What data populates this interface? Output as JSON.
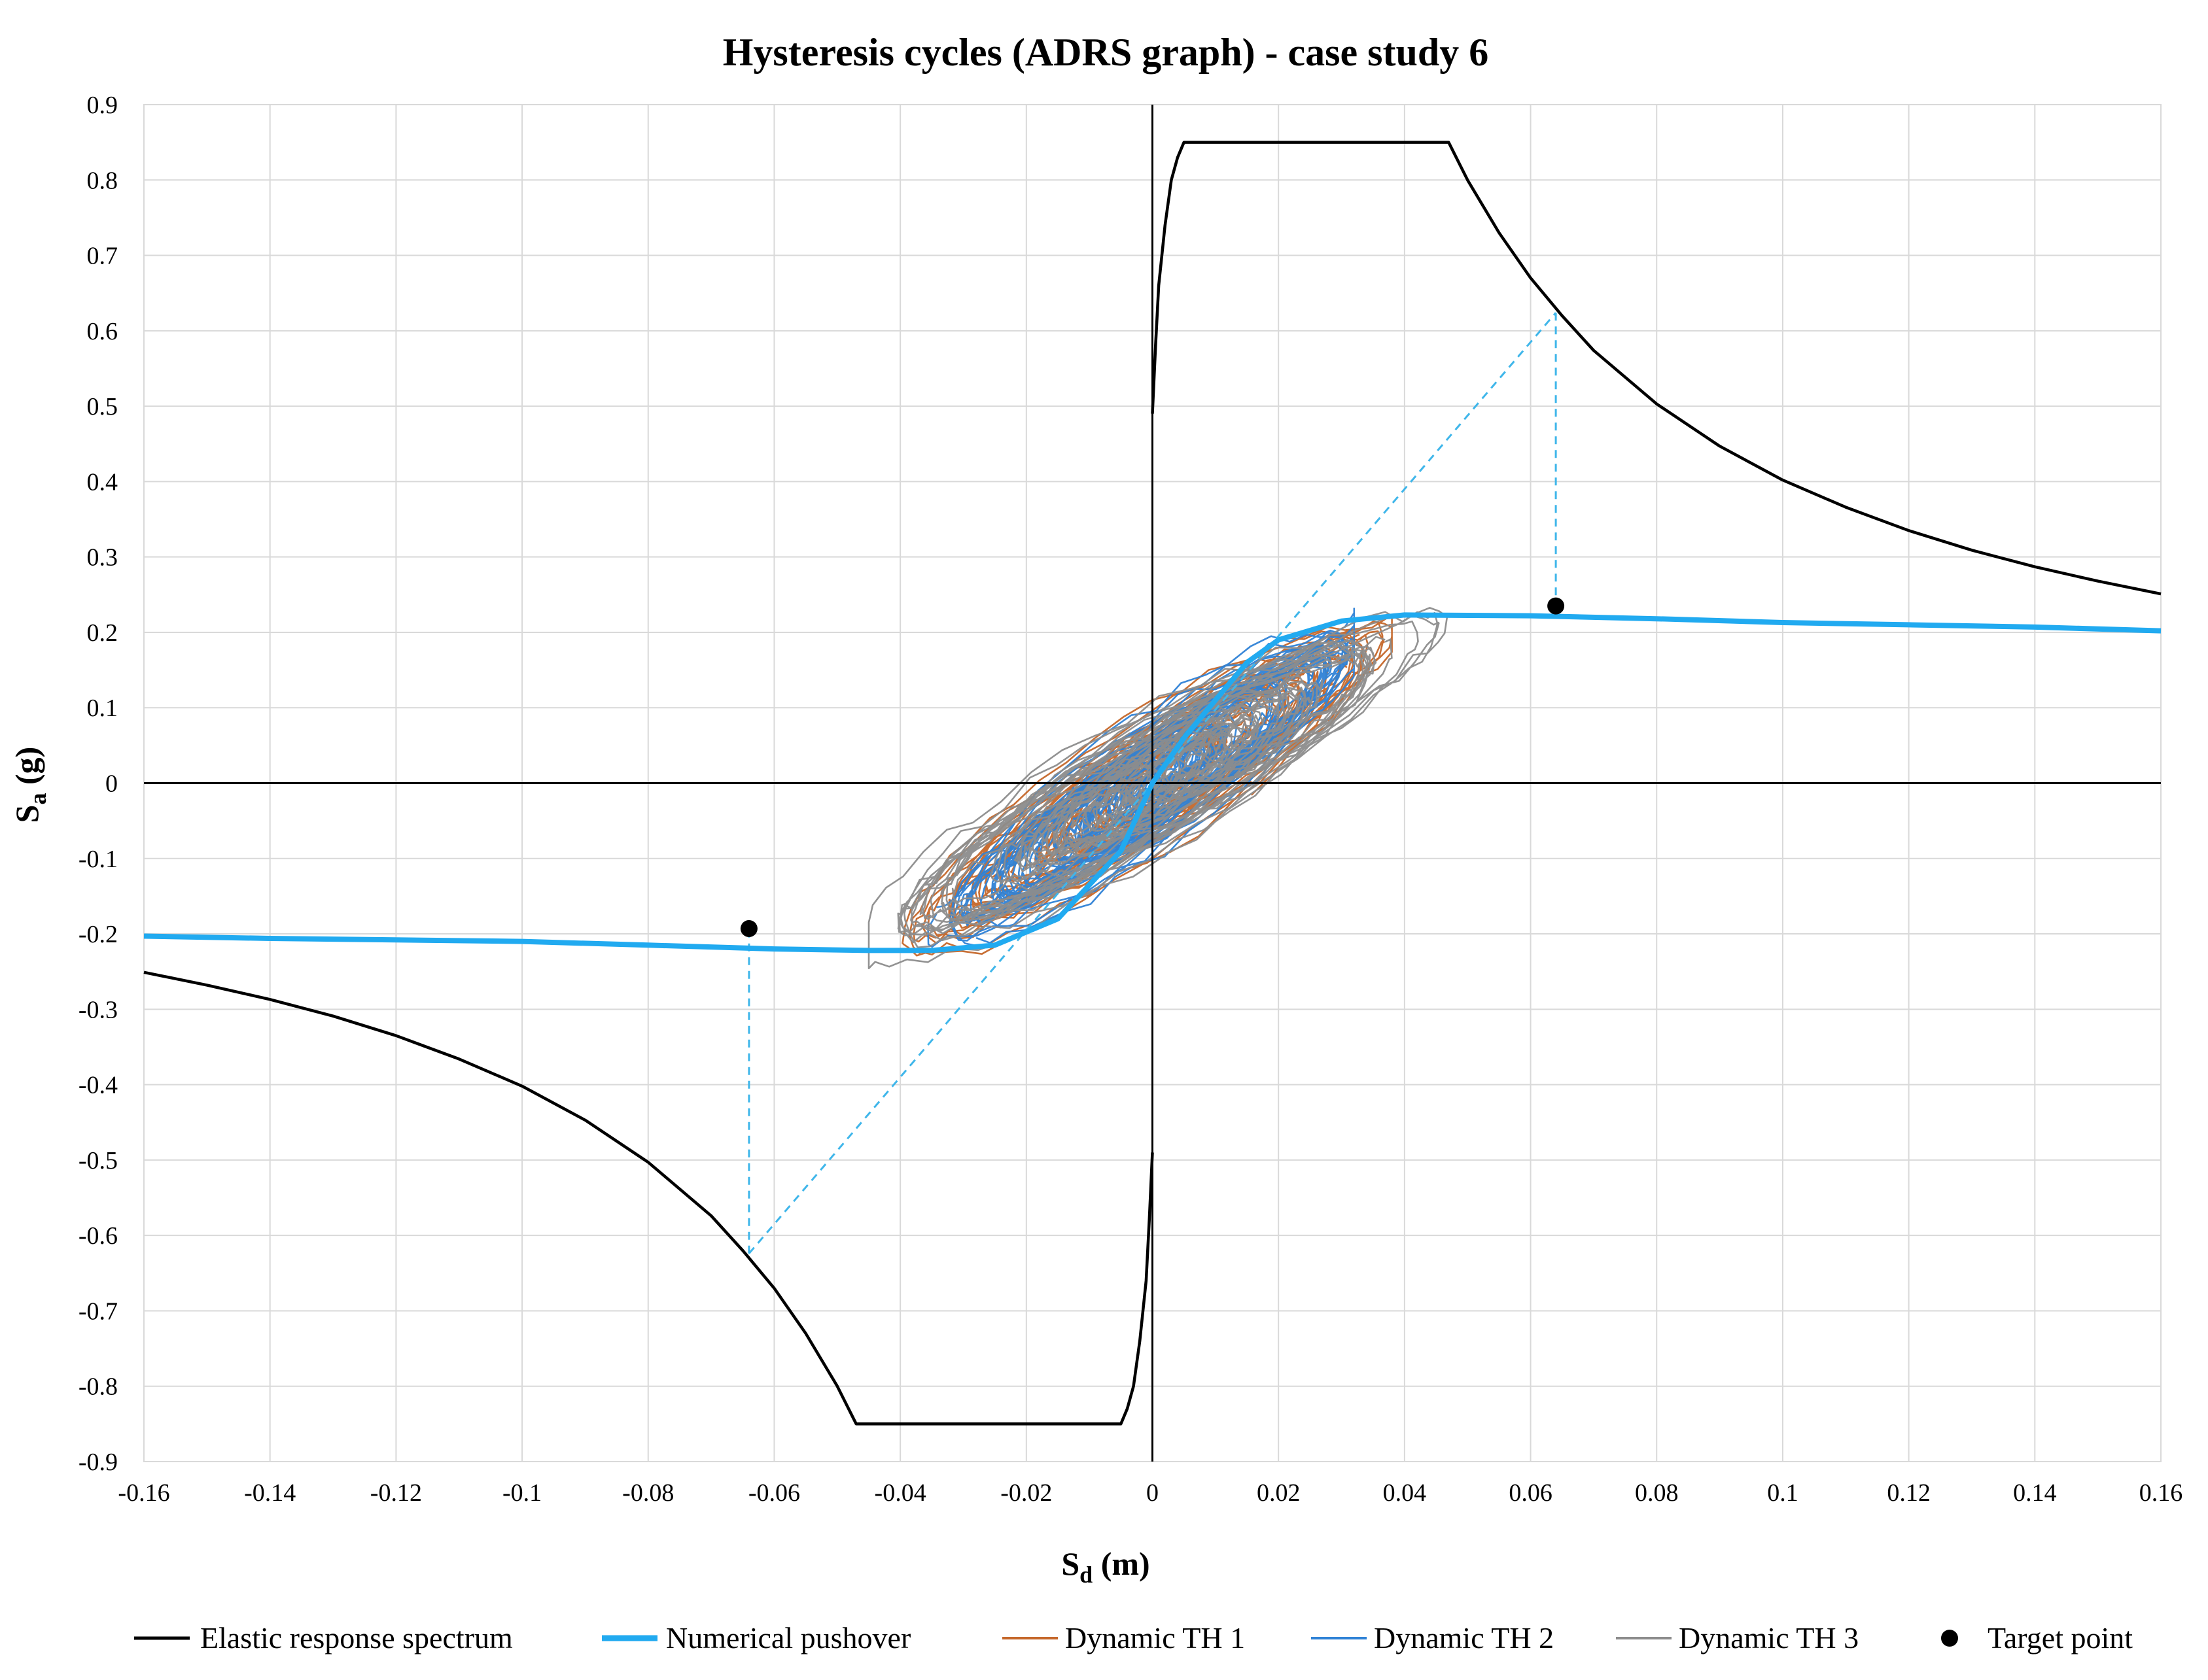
{
  "chart_data": {
    "type": "scatter",
    "title": "Hysteresis cycles (ADRS graph) - case study 6",
    "xlabel_main": "S",
    "xlabel_sub": "d",
    "xlabel_unit": " (m)",
    "ylabel_main": "S",
    "ylabel_sub": "a",
    "ylabel_unit": " (g)",
    "xlim": [
      -0.16,
      0.16
    ],
    "ylim": [
      -0.9,
      0.9
    ],
    "grid": true,
    "legend_position": "bottom",
    "x_ticks": [
      "-0.16",
      "-0.14",
      "-0.12",
      "-0.1",
      "-0.08",
      "-0.06",
      "-0.04",
      "-0.02",
      "0",
      "0.02",
      "0.04",
      "0.06",
      "0.08",
      "0.1",
      "0.12",
      "0.14",
      "0.16"
    ],
    "x_tick_values": [
      -0.16,
      -0.14,
      -0.12,
      -0.1,
      -0.08,
      -0.06,
      -0.04,
      -0.02,
      0,
      0.02,
      0.04,
      0.06,
      0.08,
      0.1,
      0.12,
      0.14,
      0.16
    ],
    "y_ticks": [
      "0.9",
      "0.8",
      "0.7",
      "0.6",
      "0.5",
      "0.4",
      "0.3",
      "0.2",
      "0.1",
      "0",
      "-0.1",
      "-0.2",
      "-0.3",
      "-0.4",
      "-0.5",
      "-0.6",
      "-0.7",
      "-0.8",
      "-0.9"
    ],
    "y_tick_values": [
      0.9,
      0.8,
      0.7,
      0.6,
      0.5,
      0.4,
      0.3,
      0.2,
      0.1,
      0,
      -0.1,
      -0.2,
      -0.3,
      -0.4,
      -0.5,
      -0.6,
      -0.7,
      -0.8,
      -0.9
    ],
    "series": [
      {
        "name": "Elastic response spectrum",
        "color": "#000000",
        "points_positive": [
          [
            0,
            0.49
          ],
          [
            0.0005,
            0.58
          ],
          [
            0.001,
            0.66
          ],
          [
            0.002,
            0.74
          ],
          [
            0.003,
            0.8
          ],
          [
            0.004,
            0.83
          ],
          [
            0.005,
            0.85
          ],
          [
            0.047,
            0.85
          ],
          [
            0.05,
            0.8
          ],
          [
            0.055,
            0.73
          ],
          [
            0.06,
            0.67
          ],
          [
            0.065,
            0.62
          ],
          [
            0.07,
            0.574
          ],
          [
            0.08,
            0.503
          ],
          [
            0.09,
            0.447
          ],
          [
            0.1,
            0.402
          ],
          [
            0.11,
            0.366
          ],
          [
            0.12,
            0.335
          ],
          [
            0.13,
            0.309
          ],
          [
            0.14,
            0.287
          ],
          [
            0.15,
            0.268
          ],
          [
            0.16,
            0.251
          ]
        ],
        "points_negative": [
          [
            0,
            -0.49
          ],
          [
            -0.0005,
            -0.58
          ],
          [
            -0.001,
            -0.66
          ],
          [
            -0.002,
            -0.74
          ],
          [
            -0.003,
            -0.8
          ],
          [
            -0.004,
            -0.83
          ],
          [
            -0.005,
            -0.85
          ],
          [
            -0.047,
            -0.85
          ],
          [
            -0.05,
            -0.8
          ],
          [
            -0.055,
            -0.73
          ],
          [
            -0.06,
            -0.67
          ],
          [
            -0.065,
            -0.62
          ],
          [
            -0.07,
            -0.574
          ],
          [
            -0.08,
            -0.503
          ],
          [
            -0.09,
            -0.447
          ],
          [
            -0.1,
            -0.402
          ],
          [
            -0.11,
            -0.366
          ],
          [
            -0.12,
            -0.335
          ],
          [
            -0.13,
            -0.309
          ],
          [
            -0.14,
            -0.287
          ],
          [
            -0.15,
            -0.268
          ],
          [
            -0.16,
            -0.251
          ]
        ]
      },
      {
        "name": "Numerical pushover",
        "color": "#21aaf0",
        "points": [
          [
            -0.16,
            -0.203
          ],
          [
            -0.14,
            -0.206
          ],
          [
            -0.12,
            -0.208
          ],
          [
            -0.1,
            -0.21
          ],
          [
            -0.08,
            -0.215
          ],
          [
            -0.06,
            -0.22
          ],
          [
            -0.045,
            -0.222
          ],
          [
            -0.035,
            -0.222
          ],
          [
            -0.025,
            -0.215
          ],
          [
            -0.015,
            -0.18
          ],
          [
            -0.005,
            -0.09
          ],
          [
            0,
            0
          ],
          [
            0.005,
            0.06
          ],
          [
            0.01,
            0.11
          ],
          [
            0.015,
            0.16
          ],
          [
            0.02,
            0.19
          ],
          [
            0.03,
            0.215
          ],
          [
            0.04,
            0.223
          ],
          [
            0.06,
            0.222
          ],
          [
            0.08,
            0.218
          ],
          [
            0.1,
            0.213
          ],
          [
            0.12,
            0.21
          ],
          [
            0.14,
            0.207
          ],
          [
            0.16,
            0.202
          ]
        ]
      },
      {
        "name": "Dynamic TH 1",
        "color": "#c5672a"
      },
      {
        "name": "Dynamic TH 2",
        "color": "#2f82d6"
      },
      {
        "name": "Dynamic TH 3",
        "color": "#8c8c8c"
      },
      {
        "name": "Target point",
        "color": "#000000",
        "points": [
          [
            0.064,
            0.235
          ],
          [
            -0.064,
            -0.193
          ]
        ]
      }
    ],
    "construction_lines": {
      "color": "#3fb6ea",
      "diagonal": [
        [
          -0.064,
          -0.624
        ],
        [
          0.064,
          0.624
        ]
      ],
      "vertical_positive": [
        [
          0.064,
          0.624
        ],
        [
          0.064,
          0.235
        ]
      ],
      "vertical_negative": [
        [
          -0.064,
          -0.624
        ],
        [
          -0.064,
          -0.193
        ]
      ]
    },
    "hysteresis_loops": {
      "Dynamic TH 1": {
        "x_range": [
          -0.042,
          0.038
        ],
        "y_range": [
          -0.24,
          0.22
        ],
        "slope": 5.2
      },
      "Dynamic TH 2": {
        "x_range": [
          -0.04,
          0.032
        ],
        "y_range": [
          -0.23,
          0.27
        ],
        "slope": 5.6
      },
      "Dynamic TH 3": {
        "x_range": [
          -0.045,
          0.055
        ],
        "y_range": [
          -0.25,
          0.24
        ],
        "slope": 4.6
      }
    }
  }
}
